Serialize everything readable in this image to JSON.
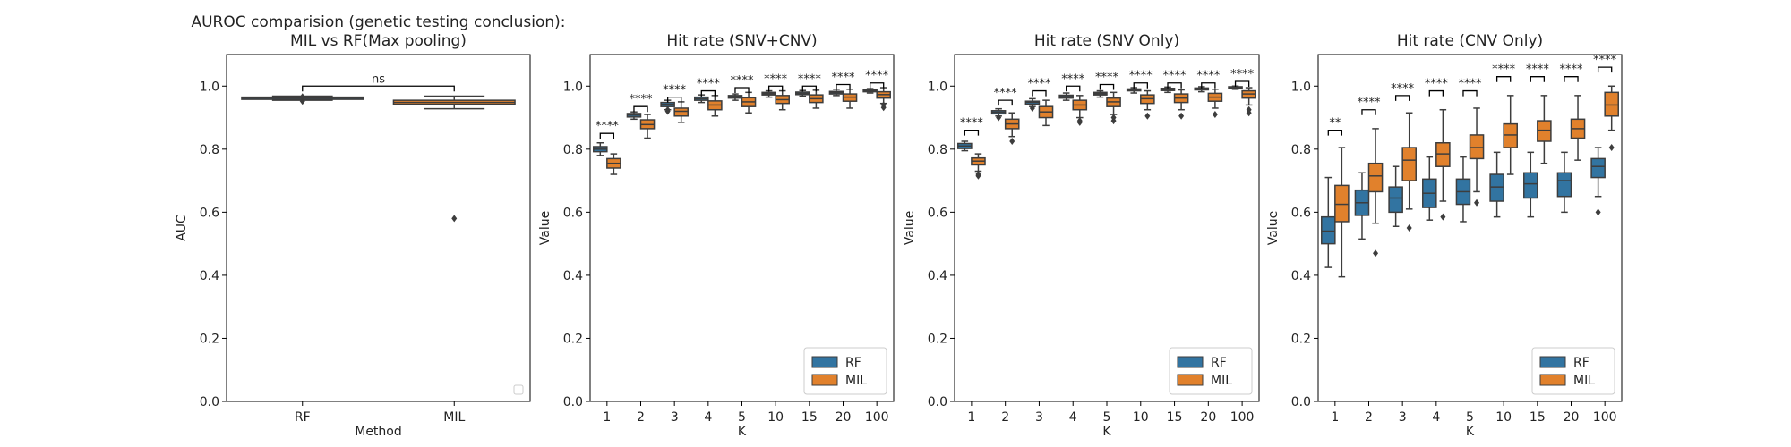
{
  "colors": {
    "rf": "#3274a1",
    "mil": "#e1812c",
    "axis": "#000000",
    "box_edge": "#3d3d3d"
  },
  "chart_data": [
    {
      "type": "box",
      "title": [
        "AUROC comparision (genetic testing conclusion):",
        "MIL vs RF(Max pooling)"
      ],
      "xlabel": "Method",
      "ylabel": "AUC",
      "ylim": [
        0,
        1.1
      ],
      "yticks": [
        "0.0",
        "0.2",
        "0.4",
        "0.6",
        "0.8",
        "1.0"
      ],
      "categories": [
        "RF",
        "MIL"
      ],
      "legend": {
        "position": "bottom-right",
        "entries": []
      },
      "boxes": [
        {
          "category": "RF",
          "color": "rf",
          "whislo": 0.955,
          "q1": 0.958,
          "med": 0.962,
          "q3": 0.965,
          "whishi": 0.968,
          "fliers": [
            0.952,
            0.966
          ]
        },
        {
          "category": "MIL",
          "color": "mil",
          "whislo": 0.928,
          "q1": 0.942,
          "med": 0.948,
          "q3": 0.955,
          "whishi": 0.968,
          "fliers": [
            0.58
          ]
        }
      ],
      "annotations": [
        {
          "label": "ns",
          "from": 0,
          "to": 1,
          "y": 1.0
        }
      ]
    },
    {
      "type": "box",
      "title": [
        "Hit rate (SNV+CNV)"
      ],
      "xlabel": "K",
      "ylabel": "Value",
      "ylim": [
        0,
        1.1
      ],
      "yticks": [
        "0.0",
        "0.2",
        "0.4",
        "0.6",
        "0.8",
        "1.0"
      ],
      "categories": [
        "1",
        "2",
        "3",
        "4",
        "5",
        "10",
        "15",
        "20",
        "100"
      ],
      "legend": {
        "position": "bottom-right",
        "entries": [
          "RF",
          "MIL"
        ]
      },
      "series": [
        {
          "name": "RF",
          "color": "rf",
          "boxes": [
            {
              "whislo": 0.78,
              "q1": 0.792,
              "med": 0.8,
              "q3": 0.808,
              "whishi": 0.82,
              "fliers": []
            },
            {
              "whislo": 0.895,
              "q1": 0.902,
              "med": 0.908,
              "q3": 0.913,
              "whishi": 0.918,
              "fliers": []
            },
            {
              "whislo": 0.925,
              "q1": 0.935,
              "med": 0.942,
              "q3": 0.948,
              "whishi": 0.955,
              "fliers": [
                0.92,
                0.925
              ]
            },
            {
              "whislo": 0.948,
              "q1": 0.955,
              "med": 0.96,
              "q3": 0.965,
              "whishi": 0.972,
              "fliers": []
            },
            {
              "whislo": 0.955,
              "q1": 0.962,
              "med": 0.966,
              "q3": 0.97,
              "whishi": 0.975,
              "fliers": []
            },
            {
              "whislo": 0.965,
              "q1": 0.972,
              "med": 0.976,
              "q3": 0.98,
              "whishi": 0.985,
              "fliers": []
            },
            {
              "whislo": 0.968,
              "q1": 0.973,
              "med": 0.977,
              "q3": 0.981,
              "whishi": 0.986,
              "fliers": []
            },
            {
              "whislo": 0.97,
              "q1": 0.975,
              "med": 0.979,
              "q3": 0.983,
              "whishi": 0.99,
              "fliers": []
            },
            {
              "whislo": 0.978,
              "q1": 0.982,
              "med": 0.985,
              "q3": 0.988,
              "whishi": 0.992,
              "fliers": []
            }
          ]
        },
        {
          "name": "MIL",
          "color": "mil",
          "boxes": [
            {
              "whislo": 0.72,
              "q1": 0.74,
              "med": 0.755,
              "q3": 0.77,
              "whishi": 0.785,
              "fliers": []
            },
            {
              "whislo": 0.835,
              "q1": 0.865,
              "med": 0.878,
              "q3": 0.893,
              "whishi": 0.91,
              "fliers": []
            },
            {
              "whislo": 0.885,
              "q1": 0.905,
              "med": 0.92,
              "q3": 0.93,
              "whishi": 0.95,
              "fliers": []
            },
            {
              "whislo": 0.905,
              "q1": 0.925,
              "med": 0.94,
              "q3": 0.953,
              "whishi": 0.97,
              "fliers": []
            },
            {
              "whislo": 0.915,
              "q1": 0.935,
              "med": 0.95,
              "q3": 0.963,
              "whishi": 0.98,
              "fliers": []
            },
            {
              "whislo": 0.925,
              "q1": 0.945,
              "med": 0.957,
              "q3": 0.97,
              "whishi": 0.985,
              "fliers": []
            },
            {
              "whislo": 0.93,
              "q1": 0.948,
              "med": 0.96,
              "q3": 0.972,
              "whishi": 0.987,
              "fliers": []
            },
            {
              "whislo": 0.93,
              "q1": 0.952,
              "med": 0.965,
              "q3": 0.975,
              "whishi": 0.99,
              "fliers": []
            },
            {
              "whislo": 0.945,
              "q1": 0.962,
              "med": 0.973,
              "q3": 0.982,
              "whishi": 0.995,
              "fliers": [
                0.932,
                0.94
              ]
            }
          ]
        }
      ],
      "annotations": [
        {
          "label": "****",
          "category": "1",
          "y": 0.85
        },
        {
          "label": "****",
          "category": "2",
          "y": 0.935
        },
        {
          "label": "****",
          "category": "3",
          "y": 0.965
        },
        {
          "label": "****",
          "category": "4",
          "y": 0.985
        },
        {
          "label": "****",
          "category": "5",
          "y": 0.995
        },
        {
          "label": "****",
          "category": "10",
          "y": 1.0
        },
        {
          "label": "****",
          "category": "15",
          "y": 1.0
        },
        {
          "label": "****",
          "category": "20",
          "y": 1.005
        },
        {
          "label": "****",
          "category": "100",
          "y": 1.01
        }
      ]
    },
    {
      "type": "box",
      "title": [
        "Hit rate (SNV Only)"
      ],
      "xlabel": "K",
      "ylabel": "Value",
      "ylim": [
        0,
        1.1
      ],
      "yticks": [
        "0.0",
        "0.2",
        "0.4",
        "0.6",
        "0.8",
        "1.0"
      ],
      "categories": [
        "1",
        "2",
        "3",
        "4",
        "5",
        "10",
        "15",
        "20",
        "100"
      ],
      "legend": {
        "position": "bottom-right",
        "entries": [
          "RF",
          "MIL"
        ]
      },
      "series": [
        {
          "name": "RF",
          "color": "rf",
          "boxes": [
            {
              "whislo": 0.795,
              "q1": 0.802,
              "med": 0.81,
              "q3": 0.818,
              "whishi": 0.825,
              "fliers": []
            },
            {
              "whislo": 0.905,
              "q1": 0.912,
              "med": 0.917,
              "q3": 0.922,
              "whishi": 0.928,
              "fliers": [
                0.9
              ]
            },
            {
              "whislo": 0.935,
              "q1": 0.942,
              "med": 0.948,
              "q3": 0.952,
              "whishi": 0.96,
              "fliers": [
                0.93
              ]
            },
            {
              "whislo": 0.955,
              "q1": 0.962,
              "med": 0.967,
              "q3": 0.971,
              "whishi": 0.978,
              "fliers": []
            },
            {
              "whislo": 0.965,
              "q1": 0.972,
              "med": 0.976,
              "q3": 0.98,
              "whishi": 0.985,
              "fliers": []
            },
            {
              "whislo": 0.978,
              "q1": 0.985,
              "med": 0.988,
              "q3": 0.991,
              "whishi": 0.995,
              "fliers": []
            },
            {
              "whislo": 0.98,
              "q1": 0.986,
              "med": 0.99,
              "q3": 0.993,
              "whishi": 0.997,
              "fliers": []
            },
            {
              "whislo": 0.982,
              "q1": 0.988,
              "med": 0.991,
              "q3": 0.994,
              "whishi": 0.998,
              "fliers": []
            },
            {
              "whislo": 0.99,
              "q1": 0.994,
              "med": 0.996,
              "q3": 0.998,
              "whishi": 1.0,
              "fliers": []
            }
          ]
        },
        {
          "name": "MIL",
          "color": "mil",
          "boxes": [
            {
              "whislo": 0.73,
              "q1": 0.75,
              "med": 0.762,
              "q3": 0.772,
              "whishi": 0.785,
              "fliers": [
                0.715,
                0.72
              ]
            },
            {
              "whislo": 0.84,
              "q1": 0.865,
              "med": 0.88,
              "q3": 0.895,
              "whishi": 0.915,
              "fliers": [
                0.825
              ]
            },
            {
              "whislo": 0.875,
              "q1": 0.9,
              "med": 0.918,
              "q3": 0.935,
              "whishi": 0.955,
              "fliers": []
            },
            {
              "whislo": 0.9,
              "q1": 0.925,
              "med": 0.94,
              "q3": 0.955,
              "whishi": 0.97,
              "fliers": [
                0.885,
                0.89
              ]
            },
            {
              "whislo": 0.91,
              "q1": 0.935,
              "med": 0.95,
              "q3": 0.962,
              "whishi": 0.98,
              "fliers": [
                0.89,
                0.9
              ]
            },
            {
              "whislo": 0.925,
              "q1": 0.945,
              "med": 0.96,
              "q3": 0.972,
              "whishi": 0.985,
              "fliers": [
                0.905
              ]
            },
            {
              "whislo": 0.925,
              "q1": 0.948,
              "med": 0.962,
              "q3": 0.975,
              "whishi": 0.988,
              "fliers": [
                0.905
              ]
            },
            {
              "whislo": 0.93,
              "q1": 0.952,
              "med": 0.965,
              "q3": 0.977,
              "whishi": 0.99,
              "fliers": [
                0.91
              ]
            },
            {
              "whislo": 0.94,
              "q1": 0.962,
              "med": 0.975,
              "q3": 0.985,
              "whishi": 0.995,
              "fliers": [
                0.915,
                0.925
              ]
            }
          ]
        }
      ],
      "annotations": [
        {
          "label": "****",
          "category": "1",
          "y": 0.86
        },
        {
          "label": "****",
          "category": "2",
          "y": 0.955
        },
        {
          "label": "****",
          "category": "3",
          "y": 0.985
        },
        {
          "label": "****",
          "category": "4",
          "y": 1.0
        },
        {
          "label": "****",
          "category": "5",
          "y": 1.005
        },
        {
          "label": "****",
          "category": "10",
          "y": 1.01
        },
        {
          "label": "****",
          "category": "15",
          "y": 1.01
        },
        {
          "label": "****",
          "category": "20",
          "y": 1.01
        },
        {
          "label": "****",
          "category": "100",
          "y": 1.015
        }
      ]
    },
    {
      "type": "box",
      "title": [
        "Hit rate (CNV Only)"
      ],
      "xlabel": "K",
      "ylabel": "Value",
      "ylim": [
        0,
        1.1
      ],
      "yticks": [
        "0.0",
        "0.2",
        "0.4",
        "0.6",
        "0.8",
        "1.0"
      ],
      "categories": [
        "1",
        "2",
        "3",
        "4",
        "5",
        "10",
        "15",
        "20",
        "100"
      ],
      "legend": {
        "position": "bottom-right",
        "entries": [
          "RF",
          "MIL"
        ]
      },
      "series": [
        {
          "name": "RF",
          "color": "rf",
          "boxes": [
            {
              "whislo": 0.425,
              "q1": 0.5,
              "med": 0.54,
              "q3": 0.585,
              "whishi": 0.71,
              "fliers": []
            },
            {
              "whislo": 0.515,
              "q1": 0.59,
              "med": 0.63,
              "q3": 0.67,
              "whishi": 0.725,
              "fliers": []
            },
            {
              "whislo": 0.555,
              "q1": 0.6,
              "med": 0.645,
              "q3": 0.68,
              "whishi": 0.745,
              "fliers": []
            },
            {
              "whislo": 0.575,
              "q1": 0.615,
              "med": 0.66,
              "q3": 0.705,
              "whishi": 0.775,
              "fliers": []
            },
            {
              "whislo": 0.57,
              "q1": 0.625,
              "med": 0.665,
              "q3": 0.705,
              "whishi": 0.775,
              "fliers": []
            },
            {
              "whislo": 0.585,
              "q1": 0.635,
              "med": 0.68,
              "q3": 0.72,
              "whishi": 0.79,
              "fliers": []
            },
            {
              "whislo": 0.585,
              "q1": 0.645,
              "med": 0.69,
              "q3": 0.725,
              "whishi": 0.79,
              "fliers": []
            },
            {
              "whislo": 0.6,
              "q1": 0.65,
              "med": 0.7,
              "q3": 0.725,
              "whishi": 0.79,
              "fliers": []
            },
            {
              "whislo": 0.65,
              "q1": 0.71,
              "med": 0.745,
              "q3": 0.77,
              "whishi": 0.805,
              "fliers": [
                0.6
              ]
            }
          ]
        },
        {
          "name": "MIL",
          "color": "mil",
          "boxes": [
            {
              "whislo": 0.395,
              "q1": 0.57,
              "med": 0.625,
              "q3": 0.685,
              "whishi": 0.805,
              "fliers": []
            },
            {
              "whislo": 0.565,
              "q1": 0.665,
              "med": 0.715,
              "q3": 0.755,
              "whishi": 0.865,
              "fliers": [
                0.47
              ]
            },
            {
              "whislo": 0.61,
              "q1": 0.7,
              "med": 0.765,
              "q3": 0.805,
              "whishi": 0.915,
              "fliers": [
                0.55
              ]
            },
            {
              "whislo": 0.635,
              "q1": 0.745,
              "med": 0.785,
              "q3": 0.82,
              "whishi": 0.925,
              "fliers": [
                0.585
              ]
            },
            {
              "whislo": 0.665,
              "q1": 0.77,
              "med": 0.805,
              "q3": 0.845,
              "whishi": 0.93,
              "fliers": [
                0.63
              ]
            },
            {
              "whislo": 0.72,
              "q1": 0.805,
              "med": 0.845,
              "q3": 0.88,
              "whishi": 0.97,
              "fliers": []
            },
            {
              "whislo": 0.755,
              "q1": 0.825,
              "med": 0.86,
              "q3": 0.89,
              "whishi": 0.97,
              "fliers": []
            },
            {
              "whislo": 0.765,
              "q1": 0.835,
              "med": 0.865,
              "q3": 0.895,
              "whishi": 0.97,
              "fliers": []
            },
            {
              "whislo": 0.86,
              "q1": 0.905,
              "med": 0.94,
              "q3": 0.98,
              "whishi": 1.0,
              "fliers": [
                0.805
              ]
            }
          ]
        }
      ],
      "annotations": [
        {
          "label": "**",
          "category": "1",
          "y": 0.86
        },
        {
          "label": "****",
          "category": "2",
          "y": 0.925
        },
        {
          "label": "****",
          "category": "3",
          "y": 0.97
        },
        {
          "label": "****",
          "category": "4",
          "y": 0.985
        },
        {
          "label": "****",
          "category": "5",
          "y": 0.985
        },
        {
          "label": "****",
          "category": "10",
          "y": 1.03
        },
        {
          "label": "****",
          "category": "15",
          "y": 1.03
        },
        {
          "label": "****",
          "category": "20",
          "y": 1.03
        },
        {
          "label": "****",
          "category": "100",
          "y": 1.06
        }
      ]
    }
  ]
}
